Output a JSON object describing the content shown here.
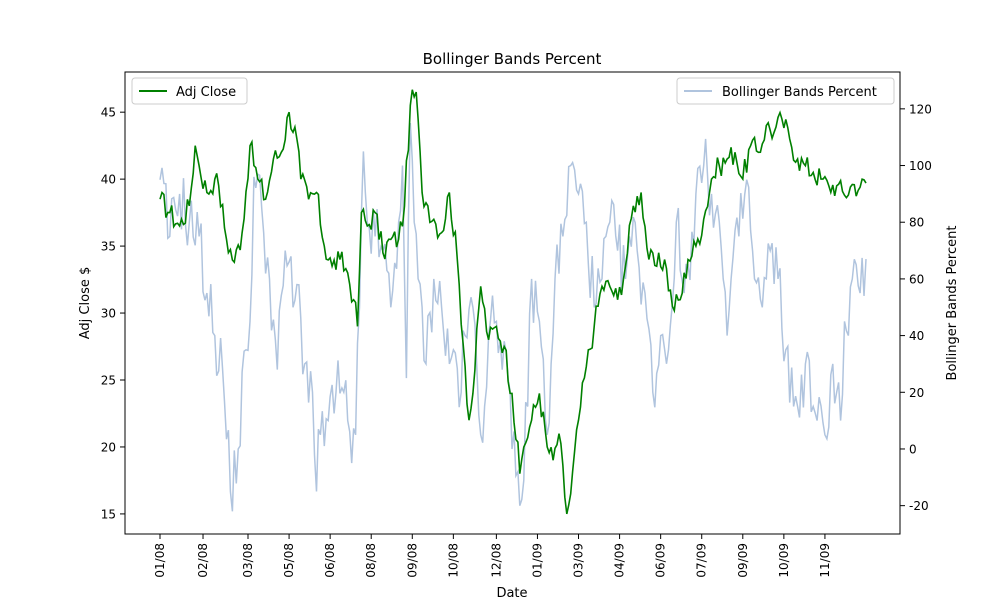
{
  "chart_data": {
    "type": "line",
    "title": "Bollinger Bands Percent",
    "xlabel": "Date",
    "ylabel": "Adj Close $",
    "y2label": "Bollinger Bands Percent",
    "ylim": [
      13.5,
      48
    ],
    "y2lim": [
      -30,
      133
    ],
    "yticks": [
      15,
      20,
      25,
      30,
      35,
      40,
      45
    ],
    "y2ticks": [
      -20,
      0,
      20,
      40,
      60,
      80,
      100,
      120
    ],
    "xtick_labels": [
      "01/08",
      "02/08",
      "03/08",
      "05/08",
      "06/08",
      "08/08",
      "09/08",
      "10/08",
      "12/08",
      "01/09",
      "03/09",
      "04/09",
      "06/09",
      "07/09",
      "09/09",
      "10/09",
      "11/09"
    ],
    "xtick_index": [
      0,
      22,
      45,
      66,
      87,
      108,
      129,
      150,
      172,
      193,
      214,
      235,
      256,
      277,
      298,
      319,
      340
    ],
    "n_points": 362,
    "legend_left": "top-left",
    "legend_right": "top-right",
    "colors": {
      "adj_close": "#008000",
      "bbp": "#b0c4de"
    },
    "series": [
      {
        "name": "Adj Close",
        "axis": "left",
        "anchors": [
          [
            0,
            38.5
          ],
          [
            5,
            37.5
          ],
          [
            10,
            36.5
          ],
          [
            15,
            38
          ],
          [
            18,
            42.5
          ],
          [
            20,
            41
          ],
          [
            24,
            39
          ],
          [
            28,
            40
          ],
          [
            30,
            39.5
          ],
          [
            34,
            35.5
          ],
          [
            38,
            33.8
          ],
          [
            42,
            36
          ],
          [
            46,
            42.5
          ],
          [
            50,
            40
          ],
          [
            54,
            38.5
          ],
          [
            58,
            41.5
          ],
          [
            62,
            42
          ],
          [
            66,
            45
          ],
          [
            70,
            43
          ],
          [
            72,
            40
          ],
          [
            76,
            38.5
          ],
          [
            80,
            39
          ],
          [
            84,
            35
          ],
          [
            88,
            33.5
          ],
          [
            92,
            34
          ],
          [
            96,
            33
          ],
          [
            99,
            31
          ],
          [
            101,
            29
          ],
          [
            103,
            37.5
          ],
          [
            106,
            36.5
          ],
          [
            110,
            37.5
          ],
          [
            114,
            34.5
          ],
          [
            118,
            35.5
          ],
          [
            122,
            35.5
          ],
          [
            125,
            38
          ],
          [
            128,
            45.5
          ],
          [
            131,
            46.5
          ],
          [
            134,
            39
          ],
          [
            137,
            38
          ],
          [
            140,
            37
          ],
          [
            144,
            36
          ],
          [
            148,
            39
          ],
          [
            152,
            34
          ],
          [
            156,
            26
          ],
          [
            158,
            22
          ],
          [
            160,
            24
          ],
          [
            164,
            32
          ],
          [
            168,
            28
          ],
          [
            172,
            29
          ],
          [
            176,
            27.5
          ],
          [
            180,
            24
          ],
          [
            184,
            18
          ],
          [
            186,
            20
          ],
          [
            190,
            22
          ],
          [
            194,
            24
          ],
          [
            198,
            20
          ],
          [
            201,
            19
          ],
          [
            204,
            21
          ],
          [
            208,
            15
          ],
          [
            210,
            16.5
          ],
          [
            214,
            22
          ],
          [
            218,
            26
          ],
          [
            222,
            29
          ],
          [
            226,
            32
          ],
          [
            230,
            32
          ],
          [
            234,
            31
          ],
          [
            238,
            33.5
          ],
          [
            242,
            38
          ],
          [
            246,
            39
          ],
          [
            250,
            34
          ],
          [
            254,
            33.5
          ],
          [
            258,
            34
          ],
          [
            262,
            30.5
          ],
          [
            266,
            31
          ],
          [
            270,
            34
          ],
          [
            274,
            35
          ],
          [
            278,
            37
          ],
          [
            282,
            40
          ],
          [
            286,
            41
          ],
          [
            290,
            41.5
          ],
          [
            294,
            42
          ],
          [
            298,
            40
          ],
          [
            302,
            42.5
          ],
          [
            306,
            42
          ],
          [
            310,
            44
          ],
          [
            314,
            43.5
          ],
          [
            318,
            44.5
          ],
          [
            322,
            43
          ],
          [
            326,
            41.5
          ],
          [
            330,
            41
          ],
          [
            334,
            40.5
          ],
          [
            338,
            40
          ],
          [
            342,
            39.5
          ],
          [
            346,
            39.5
          ],
          [
            350,
            38.8
          ],
          [
            354,
            39.6
          ],
          [
            358,
            39.4
          ],
          [
            361,
            39.7
          ]
        ]
      },
      {
        "name": "Bollinger Bands Percent",
        "axis": "right",
        "anchors": [
          [
            0,
            95
          ],
          [
            5,
            75
          ],
          [
            10,
            90
          ],
          [
            15,
            80
          ],
          [
            20,
            75
          ],
          [
            24,
            55
          ],
          [
            28,
            40
          ],
          [
            32,
            28
          ],
          [
            36,
            -15
          ],
          [
            40,
            0
          ],
          [
            44,
            35
          ],
          [
            46,
            45
          ],
          [
            48,
            96
          ],
          [
            52,
            85
          ],
          [
            56,
            60
          ],
          [
            60,
            28
          ],
          [
            64,
            70
          ],
          [
            66,
            66
          ],
          [
            68,
            50
          ],
          [
            70,
            58
          ],
          [
            74,
            30
          ],
          [
            78,
            20
          ],
          [
            80,
            -15
          ],
          [
            82,
            5
          ],
          [
            86,
            10
          ],
          [
            90,
            20
          ],
          [
            94,
            20
          ],
          [
            96,
            10
          ],
          [
            98,
            -5
          ],
          [
            100,
            5
          ],
          [
            102,
            50
          ],
          [
            104,
            105
          ],
          [
            106,
            80
          ],
          [
            110,
            75
          ],
          [
            114,
            70
          ],
          [
            118,
            50
          ],
          [
            122,
            80
          ],
          [
            124,
            100
          ],
          [
            126,
            25
          ],
          [
            128,
            115
          ],
          [
            130,
            80
          ],
          [
            132,
            60
          ],
          [
            134,
            50
          ],
          [
            136,
            30
          ],
          [
            140,
            60
          ],
          [
            144,
            50
          ],
          [
            148,
            30
          ],
          [
            150,
            35
          ],
          [
            154,
            20
          ],
          [
            156,
            40
          ],
          [
            160,
            50
          ],
          [
            164,
            5
          ],
          [
            168,
            40
          ],
          [
            172,
            45
          ],
          [
            176,
            38
          ],
          [
            180,
            0
          ],
          [
            184,
            -20
          ],
          [
            188,
            15
          ],
          [
            190,
            60
          ],
          [
            194,
            45
          ],
          [
            198,
            5
          ],
          [
            200,
            30
          ],
          [
            202,
            60
          ],
          [
            206,
            75
          ],
          [
            210,
            100
          ],
          [
            214,
            90
          ],
          [
            218,
            80
          ],
          [
            222,
            50
          ],
          [
            226,
            60
          ],
          [
            230,
            80
          ],
          [
            234,
            70
          ],
          [
            238,
            60
          ],
          [
            240,
            75
          ],
          [
            244,
            70
          ],
          [
            248,
            55
          ],
          [
            252,
            20
          ],
          [
            256,
            40
          ],
          [
            260,
            35
          ],
          [
            264,
            80
          ],
          [
            268,
            55
          ],
          [
            270,
            65
          ],
          [
            274,
            90
          ],
          [
            278,
            100
          ],
          [
            282,
            90
          ],
          [
            286,
            80
          ],
          [
            288,
            60
          ],
          [
            290,
            40
          ],
          [
            292,
            60
          ],
          [
            296,
            75
          ],
          [
            300,
            95
          ],
          [
            304,
            60
          ],
          [
            308,
            50
          ],
          [
            312,
            70
          ],
          [
            316,
            60
          ],
          [
            320,
            35
          ],
          [
            324,
            15
          ],
          [
            326,
            15
          ],
          [
            330,
            30
          ],
          [
            334,
            15
          ],
          [
            336,
            10
          ],
          [
            340,
            5
          ],
          [
            344,
            30
          ],
          [
            348,
            10
          ],
          [
            350,
            45
          ],
          [
            352,
            40
          ],
          [
            354,
            60
          ],
          [
            356,
            65
          ],
          [
            358,
            55
          ],
          [
            361,
            67
          ]
        ]
      }
    ]
  }
}
